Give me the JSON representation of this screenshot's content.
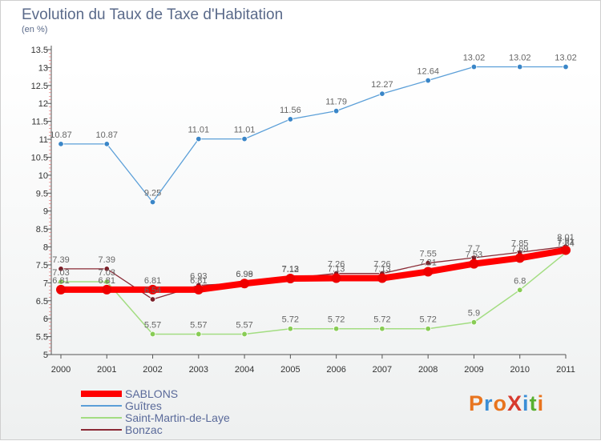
{
  "title": "Evolution du Taux de Taxe d'Habitation",
  "subtitle": "(en %)",
  "logo": {
    "text": "ProXiti",
    "colors": [
      "#e8741e",
      "#3a8ed6",
      "#e8741e",
      "#d73a2e",
      "#3a8ed6",
      "#58b030",
      "#e8741e"
    ]
  },
  "chart_data": {
    "type": "line",
    "x": [
      "2000",
      "2001",
      "2002",
      "2003",
      "2004",
      "2005",
      "2006",
      "2007",
      "2008",
      "2009",
      "2010",
      "2011"
    ],
    "ylim": [
      5,
      13.5
    ],
    "yticks": [
      "5",
      "5.5",
      "6",
      "6.5",
      "7",
      "7.5",
      "8",
      "8.5",
      "9",
      "9.5",
      "10",
      "10.5",
      "11",
      "11.5",
      "12",
      "12.5",
      "13",
      "13.5"
    ],
    "grid": false,
    "legend_position": "bottom-left",
    "series": [
      {
        "name": "Guîtres",
        "color": "#5b9fd8",
        "marker": "#3a86c8",
        "width": 1.3,
        "values": [
          10.87,
          10.87,
          9.25,
          11.01,
          11.01,
          11.56,
          11.79,
          12.27,
          12.64,
          13.02,
          13.02,
          13.02
        ],
        "labels": [
          "10.87",
          "10.87",
          "9.25",
          "11.01",
          "11.01",
          "11.56",
          "11.79",
          "12.27",
          "12.64",
          "13.02",
          "13.02",
          "13.02"
        ]
      },
      {
        "name": "Saint-Martin-de-Laye",
        "color": "#a3dd82",
        "marker": "#88cc55",
        "width": 1.5,
        "values": [
          7.03,
          7.03,
          5.57,
          5.57,
          5.57,
          5.72,
          5.72,
          5.72,
          5.72,
          5.9,
          6.8,
          7.84
        ],
        "labels": [
          "7.03",
          "7.03",
          "5.57",
          "5.57",
          "5.57",
          "5.72",
          "5.72",
          "5.72",
          "5.72",
          "5.9",
          "6.8",
          "7.84"
        ]
      },
      {
        "name": "Bonzac",
        "color": "#8a2a35",
        "marker": "#7a1f28",
        "width": 1.3,
        "values": [
          7.39,
          7.39,
          6.54,
          6.93,
          6.99,
          7.13,
          7.26,
          7.26,
          7.55,
          7.7,
          7.85,
          8.01
        ],
        "labels": [
          "7.39",
          "7.39",
          "6.54",
          "6.93",
          "6.99",
          "7.13",
          "7.26",
          "7.26",
          "7.55",
          "7.7",
          "7.85",
          "8.01"
        ]
      },
      {
        "name": "SABLONS",
        "color": "#ff0000",
        "marker": "#ee0000",
        "width": 8,
        "values": [
          6.81,
          6.81,
          6.81,
          6.81,
          6.98,
          7.12,
          7.13,
          7.13,
          7.31,
          7.53,
          7.69,
          7.91
        ],
        "labels": [
          "6.81",
          "6.81",
          "6.81",
          "6.81",
          "6.98",
          "7.12",
          "7.13",
          "7.13",
          "7.31",
          "7.53",
          "7.69",
          "7.91"
        ]
      }
    ]
  }
}
